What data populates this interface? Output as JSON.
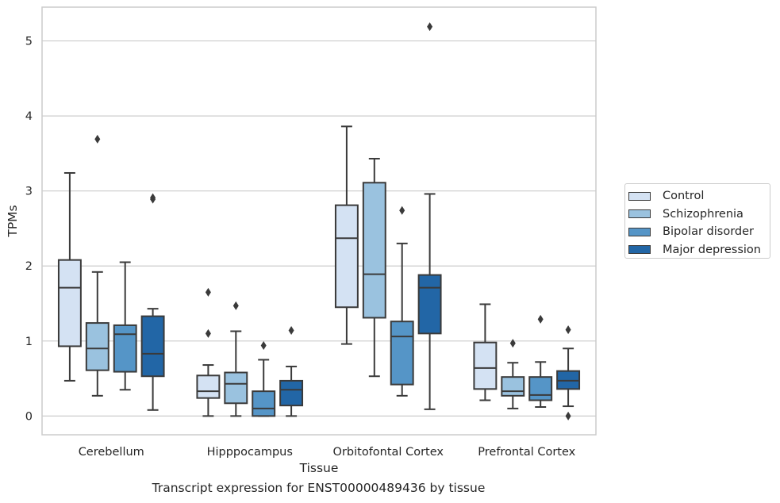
{
  "chart_data": {
    "type": "boxplot",
    "xlabel": "Tissue",
    "ylabel": "TPMs",
    "ylim": [
      -0.25,
      5.45
    ],
    "yticks": [
      0,
      1,
      2,
      3,
      4,
      5
    ],
    "grid": "horizontal",
    "legend_position": "right",
    "categories": [
      "Cerebellum",
      "Hipppocampus",
      "Orbitofontal Cortex",
      "Prefrontal Cortex"
    ],
    "series": [
      {
        "name": "Control",
        "color": "#d4e2f3",
        "boxes": [
          {
            "whislo": 0.47,
            "q1": 0.93,
            "med": 1.71,
            "q3": 2.08,
            "whishi": 3.24,
            "fliers": []
          },
          {
            "whislo": 0.0,
            "q1": 0.24,
            "med": 0.33,
            "q3": 0.54,
            "whishi": 0.68,
            "fliers": [
              1.1,
              1.65
            ]
          },
          {
            "whislo": 0.96,
            "q1": 1.45,
            "med": 2.37,
            "q3": 2.81,
            "whishi": 3.86,
            "fliers": []
          },
          {
            "whislo": 0.21,
            "q1": 0.36,
            "med": 0.64,
            "q3": 0.98,
            "whishi": 1.49,
            "fliers": []
          }
        ]
      },
      {
        "name": "Schizophrenia",
        "color": "#9ac2df",
        "boxes": [
          {
            "whislo": 0.27,
            "q1": 0.61,
            "med": 0.9,
            "q3": 1.24,
            "whishi": 1.92,
            "fliers": [
              3.69
            ]
          },
          {
            "whislo": 0.0,
            "q1": 0.17,
            "med": 0.43,
            "q3": 0.58,
            "whishi": 1.13,
            "fliers": [
              1.47
            ]
          },
          {
            "whislo": 0.53,
            "q1": 1.31,
            "med": 1.89,
            "q3": 3.11,
            "whishi": 3.43,
            "fliers": []
          },
          {
            "whislo": 0.1,
            "q1": 0.27,
            "med": 0.33,
            "q3": 0.52,
            "whishi": 0.71,
            "fliers": [
              0.97
            ]
          }
        ]
      },
      {
        "name": "Bipolar disorder",
        "color": "#5595c7",
        "boxes": [
          {
            "whislo": 0.35,
            "q1": 0.59,
            "med": 1.09,
            "q3": 1.21,
            "whishi": 2.05,
            "fliers": []
          },
          {
            "whislo": 0.0,
            "q1": 0.0,
            "med": 0.1,
            "q3": 0.33,
            "whishi": 0.75,
            "fliers": [
              0.94
            ]
          },
          {
            "whislo": 0.27,
            "q1": 0.42,
            "med": 1.06,
            "q3": 1.26,
            "whishi": 2.3,
            "fliers": [
              2.74
            ]
          },
          {
            "whislo": 0.12,
            "q1": 0.21,
            "med": 0.28,
            "q3": 0.52,
            "whishi": 0.72,
            "fliers": [
              1.29
            ]
          }
        ]
      },
      {
        "name": "Major depression",
        "color": "#2266a6",
        "boxes": [
          {
            "whislo": 0.08,
            "q1": 0.53,
            "med": 0.83,
            "q3": 1.33,
            "whishi": 1.43,
            "fliers": [
              2.89,
              2.91
            ]
          },
          {
            "whislo": 0.0,
            "q1": 0.14,
            "med": 0.35,
            "q3": 0.47,
            "whishi": 0.66,
            "fliers": [
              1.14
            ]
          },
          {
            "whislo": 0.09,
            "q1": 1.1,
            "med": 1.71,
            "q3": 1.88,
            "whishi": 2.96,
            "fliers": [
              5.19
            ]
          },
          {
            "whislo": 0.13,
            "q1": 0.36,
            "med": 0.47,
            "q3": 0.6,
            "whishi": 0.9,
            "fliers": [
              0.0,
              1.15
            ]
          }
        ]
      }
    ]
  },
  "caption": "Transcript expression for ENST00000489436 by tissue"
}
